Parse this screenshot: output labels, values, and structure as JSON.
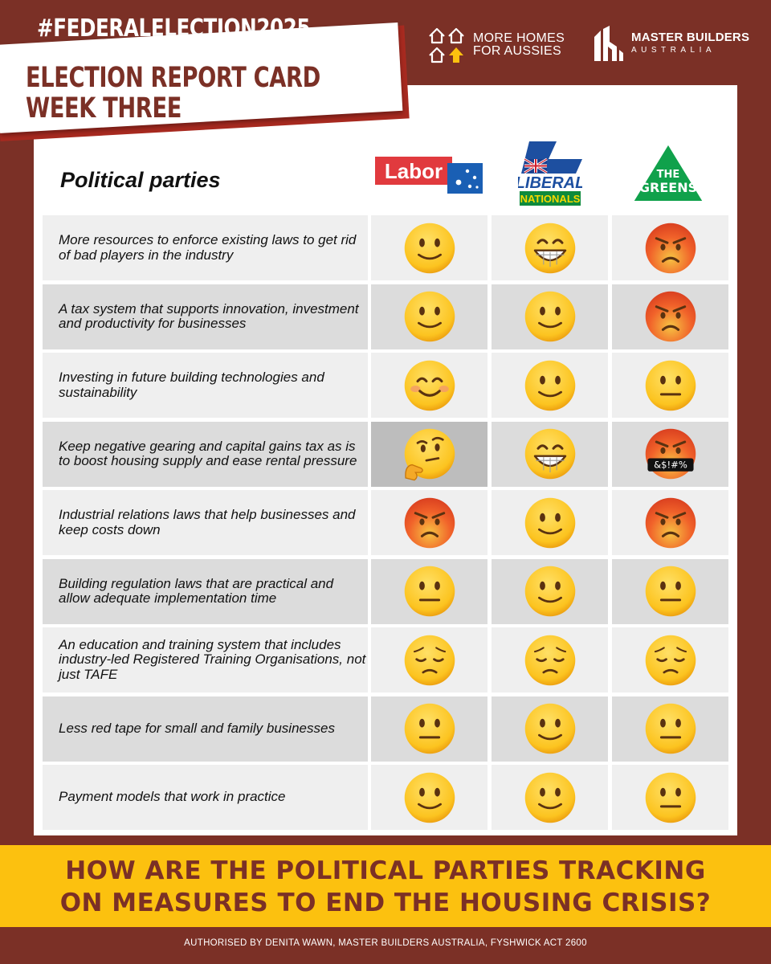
{
  "header": {
    "hashtag": "#FEDERALELECTION2025",
    "brand_homes": {
      "line1": "MORE HOMES",
      "line2": "FOR AUSSIES"
    },
    "brand_mba": {
      "line1": "MASTER BUILDERS",
      "line2": "AUSTRALIA"
    },
    "report_title_line1": "ELECTION REPORT CARD",
    "report_title_line2": "WEEK THREE"
  },
  "table": {
    "label": "Political parties",
    "parties": [
      {
        "name": "Labor",
        "logo_text": "Labor",
        "color": "#e13a3e"
      },
      {
        "name": "Liberal Nationals",
        "logo_text_1": "LIBERAL",
        "logo_text_2": "NATIONALS",
        "color": "#1d4fa0"
      },
      {
        "name": "The Greens",
        "logo_text_1": "THE",
        "logo_text_2": "GREENS",
        "color": "#10a14b"
      }
    ],
    "rows": [
      {
        "measure": "More resources to enforce existing laws to get rid of bad players in the industry",
        "ratings": [
          "slight-smile",
          "grin",
          "angry"
        ]
      },
      {
        "measure": "A tax system that supports innovation, investment and productivity for businesses",
        "ratings": [
          "slight-smile",
          "slight-smile",
          "angry"
        ]
      },
      {
        "measure": "Investing in future building technologies and sustainability",
        "ratings": [
          "blush-smile",
          "slight-smile",
          "neutral"
        ]
      },
      {
        "measure": "Keep negative gearing and capital gains tax as is to boost housing supply and ease rental pressure",
        "ratings": [
          "thinking",
          "grin",
          "cursing"
        ]
      },
      {
        "measure": "Industrial relations laws that help businesses and keep costs down",
        "ratings": [
          "angry",
          "slight-smile",
          "angry"
        ]
      },
      {
        "measure": "Building regulation laws that are practical and allow adequate implementation time",
        "ratings": [
          "neutral",
          "slight-smile",
          "neutral"
        ]
      },
      {
        "measure": "An education and training system that includes industry-led Registered Training Organisations, not just TAFE",
        "ratings": [
          "pensive",
          "pensive",
          "pensive"
        ]
      },
      {
        "measure": "Less red tape for small and family businesses",
        "ratings": [
          "neutral",
          "slight-smile",
          "neutral"
        ]
      },
      {
        "measure": "Payment models that work in practice",
        "ratings": [
          "slight-smile",
          "slight-smile",
          "neutral"
        ]
      }
    ],
    "cursing_symbols": "&$!#%"
  },
  "banner": {
    "line1": "HOW ARE THE POLITICAL PARTIES TRACKING",
    "line2": "ON MEASURES TO END THE HOUSING CRISIS?"
  },
  "footer": "AUTHORISED BY DENITA WAWN, MASTER BUILDERS AUSTRALIA, FYSHWICK ACT 2600",
  "colors": {
    "maroon": "#7b3026",
    "accent_red": "#a82a20",
    "banner_yellow": "#fcc10f"
  }
}
